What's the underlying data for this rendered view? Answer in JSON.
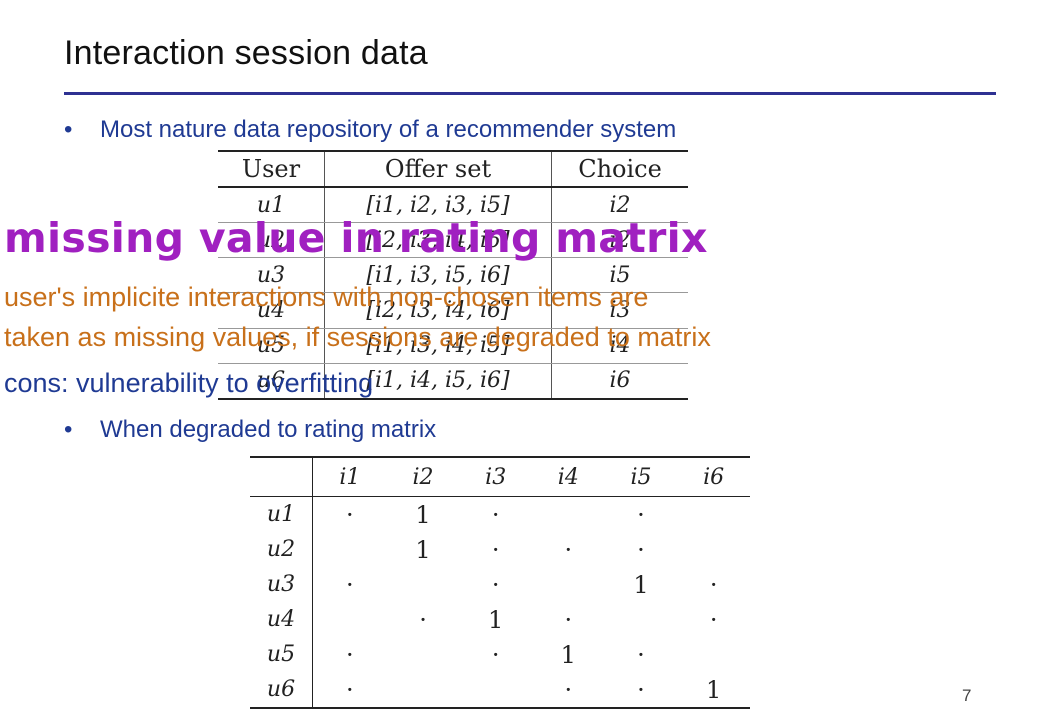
{
  "slide": {
    "title": "Interaction session data",
    "bullets": [
      "Most nature data repository of a recommender system",
      "When degraded to rating matrix"
    ],
    "page_number": "7"
  },
  "session_table": {
    "headers": [
      "User",
      "Offer set",
      "Choice"
    ],
    "rows": [
      [
        "u1",
        "[i1, i2, i3, i5]",
        "i2"
      ],
      [
        "u2",
        "[i2, i3, i4, i5]",
        "i2"
      ],
      [
        "u3",
        "[i1, i3, i5, i6]",
        "i5"
      ],
      [
        "u4",
        "[i2, i3, i4, i6]",
        "i3"
      ],
      [
        "u5",
        "[i1, i3, i4, i5]",
        "i4"
      ],
      [
        "u6",
        "[i1, i4, i5, i6]",
        "i6"
      ]
    ]
  },
  "rating_matrix": {
    "columns": [
      "",
      "i1",
      "i2",
      "i3",
      "i4",
      "i5",
      "i6"
    ],
    "rows": [
      [
        "u1",
        "·",
        "1",
        "·",
        "",
        "·",
        ""
      ],
      [
        "u2",
        "",
        "1",
        "·",
        "·",
        "·",
        ""
      ],
      [
        "u3",
        "·",
        "",
        "·",
        "",
        "1",
        "·"
      ],
      [
        "u4",
        "",
        "·",
        "1",
        "·",
        "",
        "·"
      ],
      [
        "u5",
        "·",
        "",
        "·",
        "1",
        "·",
        ""
      ],
      [
        "u6",
        "·",
        "",
        "",
        "·",
        "·",
        "1"
      ]
    ]
  },
  "overlay": {
    "heading": "missing value in rating matrix",
    "line1": "user's implicite interactions with non-chosen items are",
    "line2": "taken as missing values, if sessions are degraded to matrix",
    "cons": "cons: vulnerability to overfitting"
  },
  "colors": {
    "title_rule": "#2e3192",
    "bullet_text": "#1f3a93",
    "overlay_heading": "#a020c0",
    "overlay_text": "#c8701a"
  }
}
